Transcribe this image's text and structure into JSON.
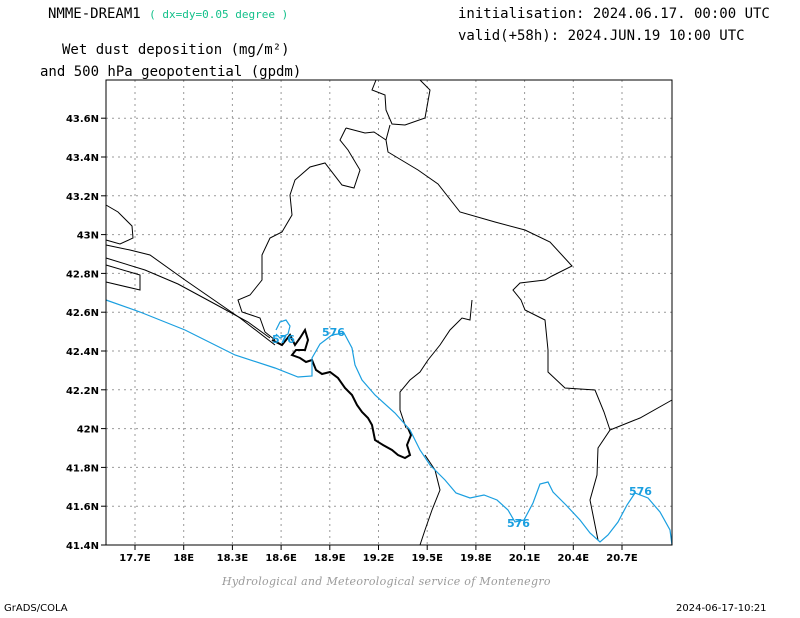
{
  "header": {
    "model": "NMME-DREAM1",
    "resolution": "( dx=dy=0.05 degree )",
    "initialisation": "initialisation: 2024.06.17. 00:00 UTC",
    "valid": "valid(+58h): 2024.JUN.19 10:00 UTC",
    "title_line1": "Wet dust deposition (mg/m²)",
    "title_line2": "and 500 hPa geopotential (gpdm)"
  },
  "map": {
    "lon_ticks": [
      "17.7E",
      "18E",
      "18.3E",
      "18.6E",
      "18.9E",
      "19.2E",
      "19.5E",
      "19.8E",
      "20.1E",
      "20.4E",
      "20.7E"
    ],
    "lat_ticks": [
      "41.4N",
      "41.6N",
      "41.8N",
      "42N",
      "42.2N",
      "42.4N",
      "42.6N",
      "42.8N",
      "43N",
      "43.2N",
      "43.4N",
      "43.6N"
    ],
    "contour_labels": [
      "576",
      "576",
      "576",
      "576"
    ],
    "contour_color": "#1a9fe0",
    "border_color": "#000000",
    "grid": "dotted"
  },
  "footer": {
    "credit": "Hydrological and Meteorological service of Montenegro",
    "software": "GrADS/COLA",
    "timestamp": "2024-06-17-10:21"
  }
}
